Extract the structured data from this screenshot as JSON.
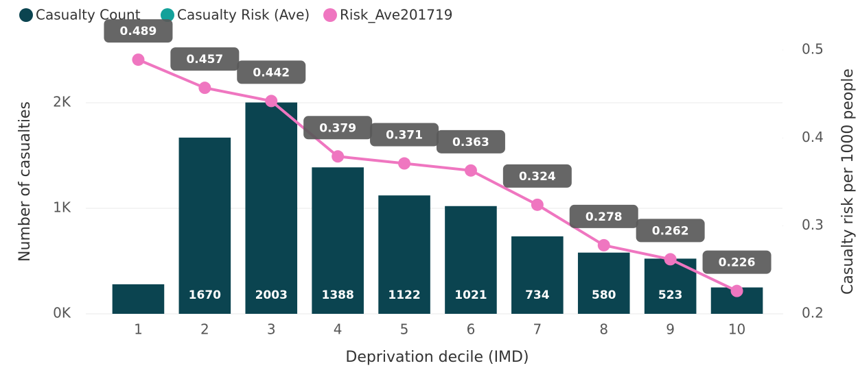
{
  "chart_data": {
    "type": "bar",
    "categories": [
      "1",
      "2",
      "3",
      "4",
      "5",
      "6",
      "7",
      "8",
      "9",
      "10"
    ],
    "x_label": "Deprivation decile (IMD)",
    "y_label": "Number of casualties",
    "y2_label": "Casualty risk per 1000 people",
    "ylim": [
      0,
      2500
    ],
    "yticks": [
      {
        "value": 0,
        "label": "0K"
      },
      {
        "value": 1000,
        "label": "1K"
      },
      {
        "value": 2000,
        "label": "2K"
      }
    ],
    "y2lim": [
      0.2,
      0.5
    ],
    "y2ticks": [
      0.2,
      0.3,
      0.4,
      0.5
    ],
    "grid": true,
    "legend": "top-left",
    "series": [
      {
        "name": "Casualty Count",
        "color": "#0b4450",
        "type": "bar",
        "values": [
          280,
          1670,
          2003,
          1388,
          1122,
          1021,
          734,
          580,
          523,
          250
        ],
        "value_labels": [
          null,
          "1670",
          "2003",
          "1388",
          "1122",
          "1021",
          "734",
          "580",
          "523",
          null
        ]
      },
      {
        "name": "Casualty Risk (Ave)",
        "color": "#14a19a"
      },
      {
        "name": "Risk_Ave201719",
        "color": "#ef76c0",
        "type": "line",
        "axis": "y2",
        "values": [
          0.489,
          0.457,
          0.442,
          0.379,
          0.371,
          0.363,
          0.324,
          0.278,
          0.262,
          0.226
        ]
      }
    ]
  }
}
